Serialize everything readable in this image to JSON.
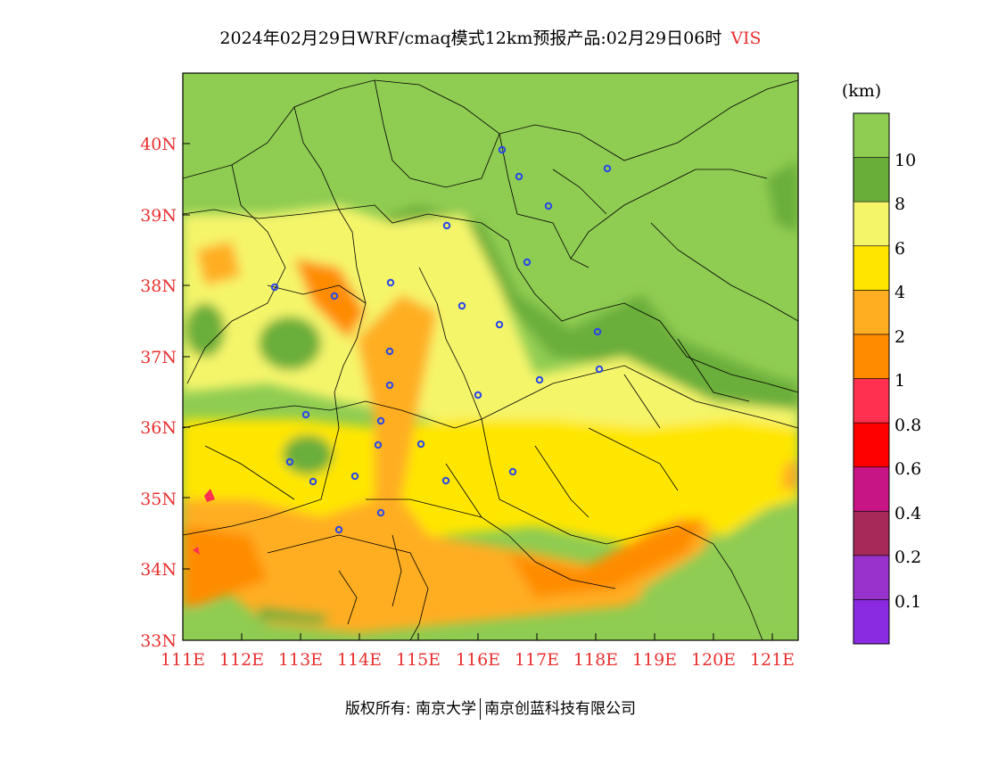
{
  "title": {
    "main": "2024年02月29日WRF/cmaq模式12km预报产品:02月29日06时",
    "variable": "VIS"
  },
  "map": {
    "lon_ticks": [
      "111E",
      "112E",
      "113E",
      "114E",
      "115E",
      "116E",
      "117E",
      "118E",
      "119E",
      "120E",
      "121E"
    ],
    "lat_ticks": [
      "33N",
      "34N",
      "35N",
      "36N",
      "37N",
      "38N",
      "39N",
      "40N"
    ]
  },
  "legend": {
    "unit": "(km)",
    "bins": [
      {
        "color": "#8a2be2"
      },
      {
        "color": "#9932cc"
      },
      {
        "color": "#a52a5a"
      },
      {
        "color": "#c71585"
      },
      {
        "color": "#ff0000"
      },
      {
        "color": "#ff3050"
      },
      {
        "color": "#ff8c00"
      },
      {
        "color": "#ffae22"
      },
      {
        "color": "#ffe600"
      },
      {
        "color": "#f5f56a"
      },
      {
        "color": "#6aae3a"
      },
      {
        "color": "#8fcc52"
      }
    ],
    "labels": [
      "0.1",
      "0.2",
      "0.4",
      "0.6",
      "0.8",
      "1",
      "2",
      "4",
      "6",
      "8",
      "10"
    ]
  },
  "footer": {
    "left": "版权所有: 南京大学",
    "right": "南京创蓝科技有限公司"
  }
}
